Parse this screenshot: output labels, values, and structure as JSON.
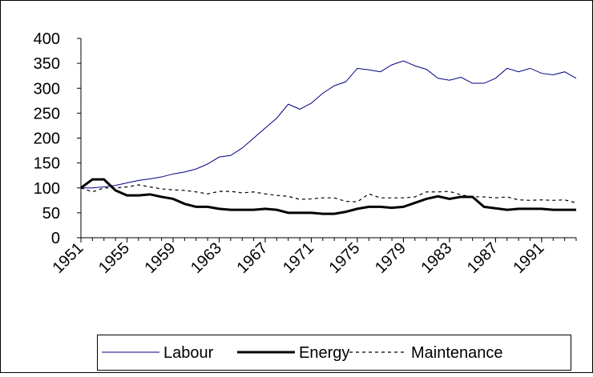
{
  "chart_data": {
    "type": "line",
    "x": [
      1951,
      1952,
      1953,
      1954,
      1955,
      1956,
      1957,
      1958,
      1959,
      1960,
      1961,
      1962,
      1963,
      1964,
      1965,
      1966,
      1967,
      1968,
      1969,
      1970,
      1971,
      1972,
      1973,
      1974,
      1975,
      1976,
      1977,
      1978,
      1979,
      1980,
      1981,
      1982,
      1983,
      1984,
      1985,
      1986,
      1987,
      1988,
      1989,
      1990,
      1991,
      1992,
      1993,
      1994
    ],
    "xlim": [
      1951,
      1994
    ],
    "xticks": [
      1951,
      1955,
      1959,
      1963,
      1967,
      1971,
      1975,
      1979,
      1983,
      1987,
      1991
    ],
    "ylim": [
      0,
      400
    ],
    "yticks": [
      0,
      50,
      100,
      150,
      200,
      250,
      300,
      350,
      400
    ],
    "grid": false,
    "legend": "bottom",
    "series": [
      {
        "name": "Labour",
        "color": "#000080",
        "values": [
          100,
          100,
          102,
          105,
          110,
          115,
          118,
          122,
          128,
          132,
          138,
          148,
          162,
          165,
          180,
          200,
          220,
          240,
          268,
          258,
          270,
          290,
          305,
          313,
          340,
          337,
          333,
          347,
          355,
          345,
          338,
          320,
          316,
          322,
          310,
          310,
          320,
          340,
          333,
          340,
          330,
          327,
          333,
          320
        ]
      },
      {
        "name": "Energy",
        "color": "#000000",
        "values": [
          100,
          117,
          117,
          95,
          85,
          85,
          87,
          82,
          78,
          68,
          62,
          62,
          58,
          56,
          56,
          56,
          58,
          56,
          50,
          50,
          50,
          48,
          48,
          52,
          58,
          62,
          62,
          60,
          62,
          70,
          78,
          83,
          78,
          82,
          82,
          62,
          59,
          56,
          58,
          58,
          58,
          56,
          56,
          56
        ]
      },
      {
        "name": "Maintenance",
        "color": "#000000",
        "values": [
          100,
          92,
          100,
          100,
          102,
          106,
          102,
          98,
          96,
          95,
          92,
          88,
          93,
          93,
          90,
          92,
          88,
          85,
          83,
          77,
          78,
          80,
          80,
          73,
          72,
          88,
          80,
          80,
          80,
          82,
          92,
          92,
          93,
          86,
          82,
          82,
          80,
          82,
          76,
          75,
          76,
          75,
          76,
          70
        ]
      }
    ]
  }
}
